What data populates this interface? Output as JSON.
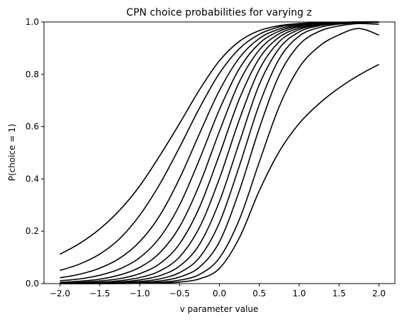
{
  "chart_data": {
    "type": "line",
    "title": "CPN choice probabilities for varying z",
    "xlabel": "v parameter value",
    "ylabel": "P(choice = 1)",
    "xlim": [
      -2.2,
      2.2
    ],
    "ylim": [
      0.0,
      1.0
    ],
    "xticks": [
      -2.0,
      -1.5,
      -1.0,
      -0.5,
      0.0,
      0.5,
      1.0,
      1.5,
      2.0
    ],
    "xtick_labels": [
      "−2.0",
      "−1.5",
      "−1.0",
      "−0.5",
      "0.0",
      "0.5",
      "1.0",
      "1.5",
      "2.0"
    ],
    "yticks": [
      0.0,
      0.2,
      0.4,
      0.6,
      0.8,
      1.0
    ],
    "ytick_labels": [
      "0.0",
      "0.2",
      "0.4",
      "0.6",
      "0.8",
      "1.0"
    ],
    "grid": false,
    "line_color": "#000000",
    "x": [
      -2.0,
      -1.75,
      -1.5,
      -1.25,
      -1.0,
      -0.75,
      -0.5,
      -0.25,
      0.0,
      0.25,
      0.5,
      0.75,
      1.0,
      1.25,
      1.5,
      1.75,
      2.0
    ],
    "series": [
      {
        "values": [
          0.112,
          0.154,
          0.209,
          0.281,
          0.373,
          0.488,
          0.612,
          0.741,
          0.852,
          0.926,
          0.967,
          0.986,
          0.994,
          0.998,
          0.999,
          1.0,
          1.0
        ]
      },
      {
        "values": [
          0.05,
          0.075,
          0.113,
          0.172,
          0.261,
          0.379,
          0.521,
          0.671,
          0.804,
          0.898,
          0.953,
          0.981,
          0.993,
          0.998,
          0.999,
          1.0,
          1.0
        ]
      },
      {
        "values": [
          0.022,
          0.036,
          0.059,
          0.097,
          0.16,
          0.259,
          0.402,
          0.573,
          0.738,
          0.863,
          0.937,
          0.973,
          0.99,
          0.996,
          0.999,
          1.0,
          1.0
        ]
      },
      {
        "values": [
          0.011,
          0.018,
          0.032,
          0.056,
          0.099,
          0.175,
          0.3,
          0.475,
          0.665,
          0.822,
          0.918,
          0.965,
          0.986,
          0.995,
          0.998,
          0.999,
          1.0
        ]
      },
      {
        "values": [
          0.005,
          0.009,
          0.017,
          0.033,
          0.062,
          0.117,
          0.217,
          0.379,
          0.582,
          0.771,
          0.893,
          0.955,
          0.982,
          0.993,
          0.997,
          0.999,
          1.0
        ]
      },
      {
        "values": [
          0.003,
          0.005,
          0.01,
          0.019,
          0.038,
          0.076,
          0.152,
          0.292,
          0.493,
          0.706,
          0.861,
          0.942,
          0.977,
          0.991,
          0.997,
          0.999,
          1.0
        ]
      },
      {
        "values": [
          0.001,
          0.003,
          0.005,
          0.011,
          0.023,
          0.048,
          0.102,
          0.215,
          0.402,
          0.627,
          0.818,
          0.925,
          0.971,
          0.989,
          0.996,
          0.998,
          0.999
        ]
      },
      {
        "values": [
          0.001,
          0.001,
          0.003,
          0.006,
          0.014,
          0.03,
          0.067,
          0.15,
          0.314,
          0.54,
          0.761,
          0.899,
          0.962,
          0.986,
          0.995,
          0.998,
          0.999
        ]
      },
      {
        "values": [
          0.0,
          0.001,
          0.002,
          0.004,
          0.008,
          0.018,
          0.042,
          0.1,
          0.233,
          0.45,
          0.685,
          0.859,
          0.946,
          0.979,
          0.992,
          0.997,
          0.999
        ]
      },
      {
        "values": [
          0.0,
          0.0,
          0.001,
          0.002,
          0.004,
          0.01,
          0.025,
          0.063,
          0.16,
          0.355,
          0.594,
          0.797,
          0.913,
          0.964,
          0.985,
          0.994,
          0.991
        ]
      },
      {
        "values": [
          0.0,
          0.0,
          0.0,
          0.001,
          0.002,
          0.005,
          0.013,
          0.035,
          0.098,
          0.245,
          0.465,
          0.677,
          0.826,
          0.907,
          0.951,
          0.975,
          0.95
        ]
      },
      {
        "values": [
          0.0,
          0.0,
          0.0,
          0.0,
          0.001,
          0.002,
          0.006,
          0.018,
          0.058,
          0.175,
          0.355,
          0.505,
          0.612,
          0.688,
          0.748,
          0.797,
          0.838
        ]
      }
    ]
  }
}
